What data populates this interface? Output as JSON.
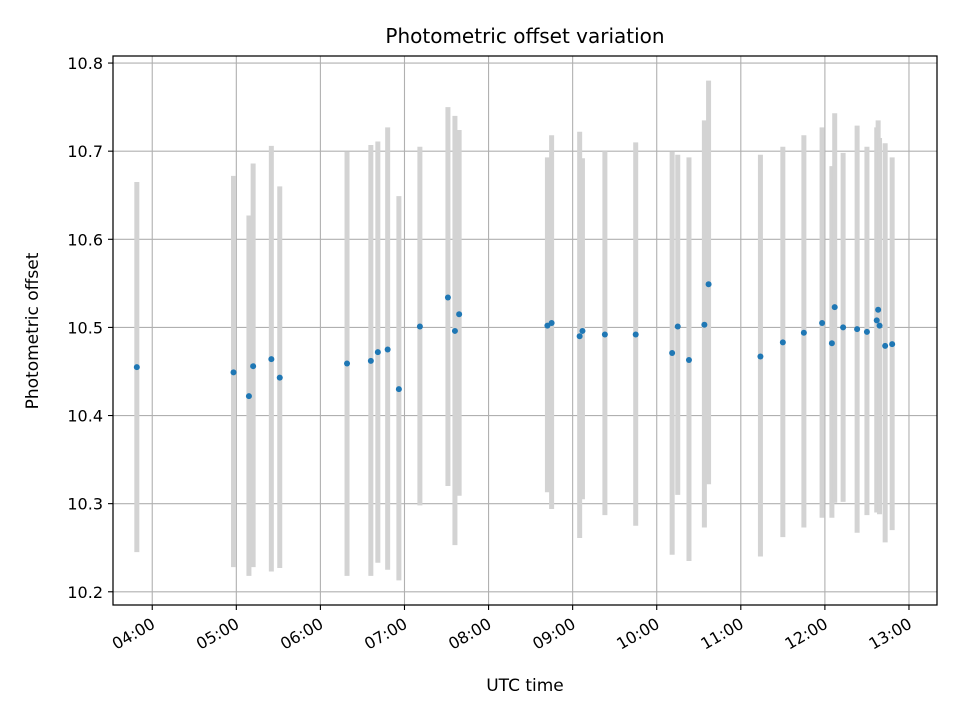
{
  "chart_data": {
    "type": "scatter",
    "title": "Photometric offset variation",
    "xlabel": "UTC time",
    "ylabel": "Photometric offset",
    "x_axis_kind": "time",
    "xlim": [
      "03:32",
      "13:20"
    ],
    "ylim": [
      10.185,
      10.808
    ],
    "x_ticks": [
      "04:00",
      "05:00",
      "06:00",
      "07:00",
      "08:00",
      "09:00",
      "10:00",
      "11:00",
      "12:00",
      "13:00"
    ],
    "y_ticks": [
      10.2,
      10.3,
      10.4,
      10.5,
      10.6,
      10.7,
      10.8
    ],
    "y_tick_labels": [
      "10.2",
      "10.3",
      "10.4",
      "10.5",
      "10.6",
      "10.7",
      "10.8"
    ],
    "grid": true,
    "marker_color": "#1f77b4",
    "errorbar_color": "#d3d3d3",
    "points": [
      {
        "x": "03:49",
        "y": 10.455,
        "ylow": 10.245,
        "yhigh": 10.665
      },
      {
        "x": "04:58",
        "y": 10.449,
        "ylow": 10.228,
        "yhigh": 10.672
      },
      {
        "x": "05:09",
        "y": 10.422,
        "ylow": 10.218,
        "yhigh": 10.627
      },
      {
        "x": "05:12",
        "y": 10.456,
        "ylow": 10.228,
        "yhigh": 10.686
      },
      {
        "x": "05:25",
        "y": 10.464,
        "ylow": 10.223,
        "yhigh": 10.706
      },
      {
        "x": "05:31",
        "y": 10.443,
        "ylow": 10.227,
        "yhigh": 10.66
      },
      {
        "x": "06:19",
        "y": 10.459,
        "ylow": 10.218,
        "yhigh": 10.699
      },
      {
        "x": "06:36",
        "y": 10.462,
        "ylow": 10.218,
        "yhigh": 10.707
      },
      {
        "x": "06:41",
        "y": 10.472,
        "ylow": 10.233,
        "yhigh": 10.711
      },
      {
        "x": "06:48",
        "y": 10.475,
        "ylow": 10.225,
        "yhigh": 10.727
      },
      {
        "x": "06:56",
        "y": 10.43,
        "ylow": 10.213,
        "yhigh": 10.649
      },
      {
        "x": "07:11",
        "y": 10.501,
        "ylow": 10.298,
        "yhigh": 10.705
      },
      {
        "x": "07:31",
        "y": 10.534,
        "ylow": 10.32,
        "yhigh": 10.75
      },
      {
        "x": "07:36",
        "y": 10.496,
        "ylow": 10.253,
        "yhigh": 10.74
      },
      {
        "x": "07:39",
        "y": 10.515,
        "ylow": 10.309,
        "yhigh": 10.724
      },
      {
        "x": "08:42",
        "y": 10.502,
        "ylow": 10.313,
        "yhigh": 10.693
      },
      {
        "x": "08:45",
        "y": 10.505,
        "ylow": 10.294,
        "yhigh": 10.718
      },
      {
        "x": "09:05",
        "y": 10.49,
        "ylow": 10.261,
        "yhigh": 10.722
      },
      {
        "x": "09:07",
        "y": 10.496,
        "ylow": 10.305,
        "yhigh": 10.692
      },
      {
        "x": "09:23",
        "y": 10.492,
        "ylow": 10.287,
        "yhigh": 10.7
      },
      {
        "x": "09:45",
        "y": 10.492,
        "ylow": 10.275,
        "yhigh": 10.71
      },
      {
        "x": "10:11",
        "y": 10.471,
        "ylow": 10.242,
        "yhigh": 10.699
      },
      {
        "x": "10:15",
        "y": 10.501,
        "ylow": 10.31,
        "yhigh": 10.696
      },
      {
        "x": "10:23",
        "y": 10.463,
        "ylow": 10.235,
        "yhigh": 10.693
      },
      {
        "x": "10:34",
        "y": 10.503,
        "ylow": 10.273,
        "yhigh": 10.735
      },
      {
        "x": "10:37",
        "y": 10.549,
        "ylow": 10.322,
        "yhigh": 10.78
      },
      {
        "x": "11:14",
        "y": 10.467,
        "ylow": 10.24,
        "yhigh": 10.696
      },
      {
        "x": "11:30",
        "y": 10.483,
        "ylow": 10.262,
        "yhigh": 10.705
      },
      {
        "x": "11:45",
        "y": 10.494,
        "ylow": 10.273,
        "yhigh": 10.718
      },
      {
        "x": "11:58",
        "y": 10.505,
        "ylow": 10.284,
        "yhigh": 10.727
      },
      {
        "x": "12:05",
        "y": 10.482,
        "ylow": 10.284,
        "yhigh": 10.683
      },
      {
        "x": "12:07",
        "y": 10.523,
        "ylow": 10.301,
        "yhigh": 10.743
      },
      {
        "x": "12:13",
        "y": 10.5,
        "ylow": 10.302,
        "yhigh": 10.698
      },
      {
        "x": "12:23",
        "y": 10.498,
        "ylow": 10.267,
        "yhigh": 10.729
      },
      {
        "x": "12:30",
        "y": 10.495,
        "ylow": 10.287,
        "yhigh": 10.705
      },
      {
        "x": "12:37",
        "y": 10.508,
        "ylow": 10.29,
        "yhigh": 10.727
      },
      {
        "x": "12:38",
        "y": 10.52,
        "ylow": 10.305,
        "yhigh": 10.735
      },
      {
        "x": "12:39",
        "y": 10.502,
        "ylow": 10.288,
        "yhigh": 10.715
      },
      {
        "x": "12:43",
        "y": 10.479,
        "ylow": 10.256,
        "yhigh": 10.709
      },
      {
        "x": "12:48",
        "y": 10.481,
        "ylow": 10.27,
        "yhigh": 10.693
      }
    ]
  }
}
